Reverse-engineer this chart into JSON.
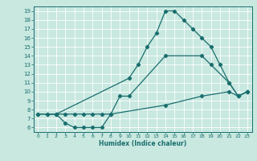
{
  "xlabel": "Humidex (Indice chaleur)",
  "xlim": [
    -0.5,
    23.5
  ],
  "ylim": [
    5.5,
    19.5
  ],
  "xticks": [
    0,
    1,
    2,
    3,
    4,
    5,
    6,
    7,
    8,
    9,
    10,
    11,
    12,
    13,
    14,
    15,
    16,
    17,
    18,
    19,
    20,
    21,
    22,
    23
  ],
  "yticks": [
    6,
    7,
    8,
    9,
    10,
    11,
    12,
    13,
    14,
    15,
    16,
    17,
    18,
    19
  ],
  "bg_color": "#c8e8e0",
  "line_color": "#1a6e6e",
  "grid_color": "#ffffff",
  "line1_x": [
    1,
    2,
    10,
    11,
    12,
    13,
    14,
    15,
    16,
    17,
    18,
    19,
    20,
    21,
    22,
    23
  ],
  "line1_y": [
    7.5,
    7.5,
    11.5,
    13.0,
    15.0,
    16.5,
    19.0,
    19.0,
    18.0,
    17.0,
    16.0,
    15.0,
    13.0,
    11.0,
    9.5,
    10.0
  ],
  "line2_x": [
    0,
    2,
    3,
    4,
    5,
    6,
    7,
    8,
    9,
    10,
    14,
    18,
    19,
    21,
    22,
    23
  ],
  "line2_y": [
    7.5,
    7.5,
    7.5,
    7.5,
    7.5,
    7.5,
    7.5,
    7.5,
    9.5,
    9.5,
    14.0,
    14.0,
    13.0,
    11.0,
    9.5,
    10.0
  ],
  "line3_x": [
    0,
    1,
    2,
    3,
    4,
    5,
    6,
    7,
    8,
    14,
    18,
    21,
    22,
    23
  ],
  "line3_y": [
    7.5,
    7.5,
    7.5,
    6.5,
    6.0,
    6.0,
    6.0,
    6.0,
    7.5,
    8.5,
    9.5,
    10.0,
    9.5,
    10.0
  ]
}
